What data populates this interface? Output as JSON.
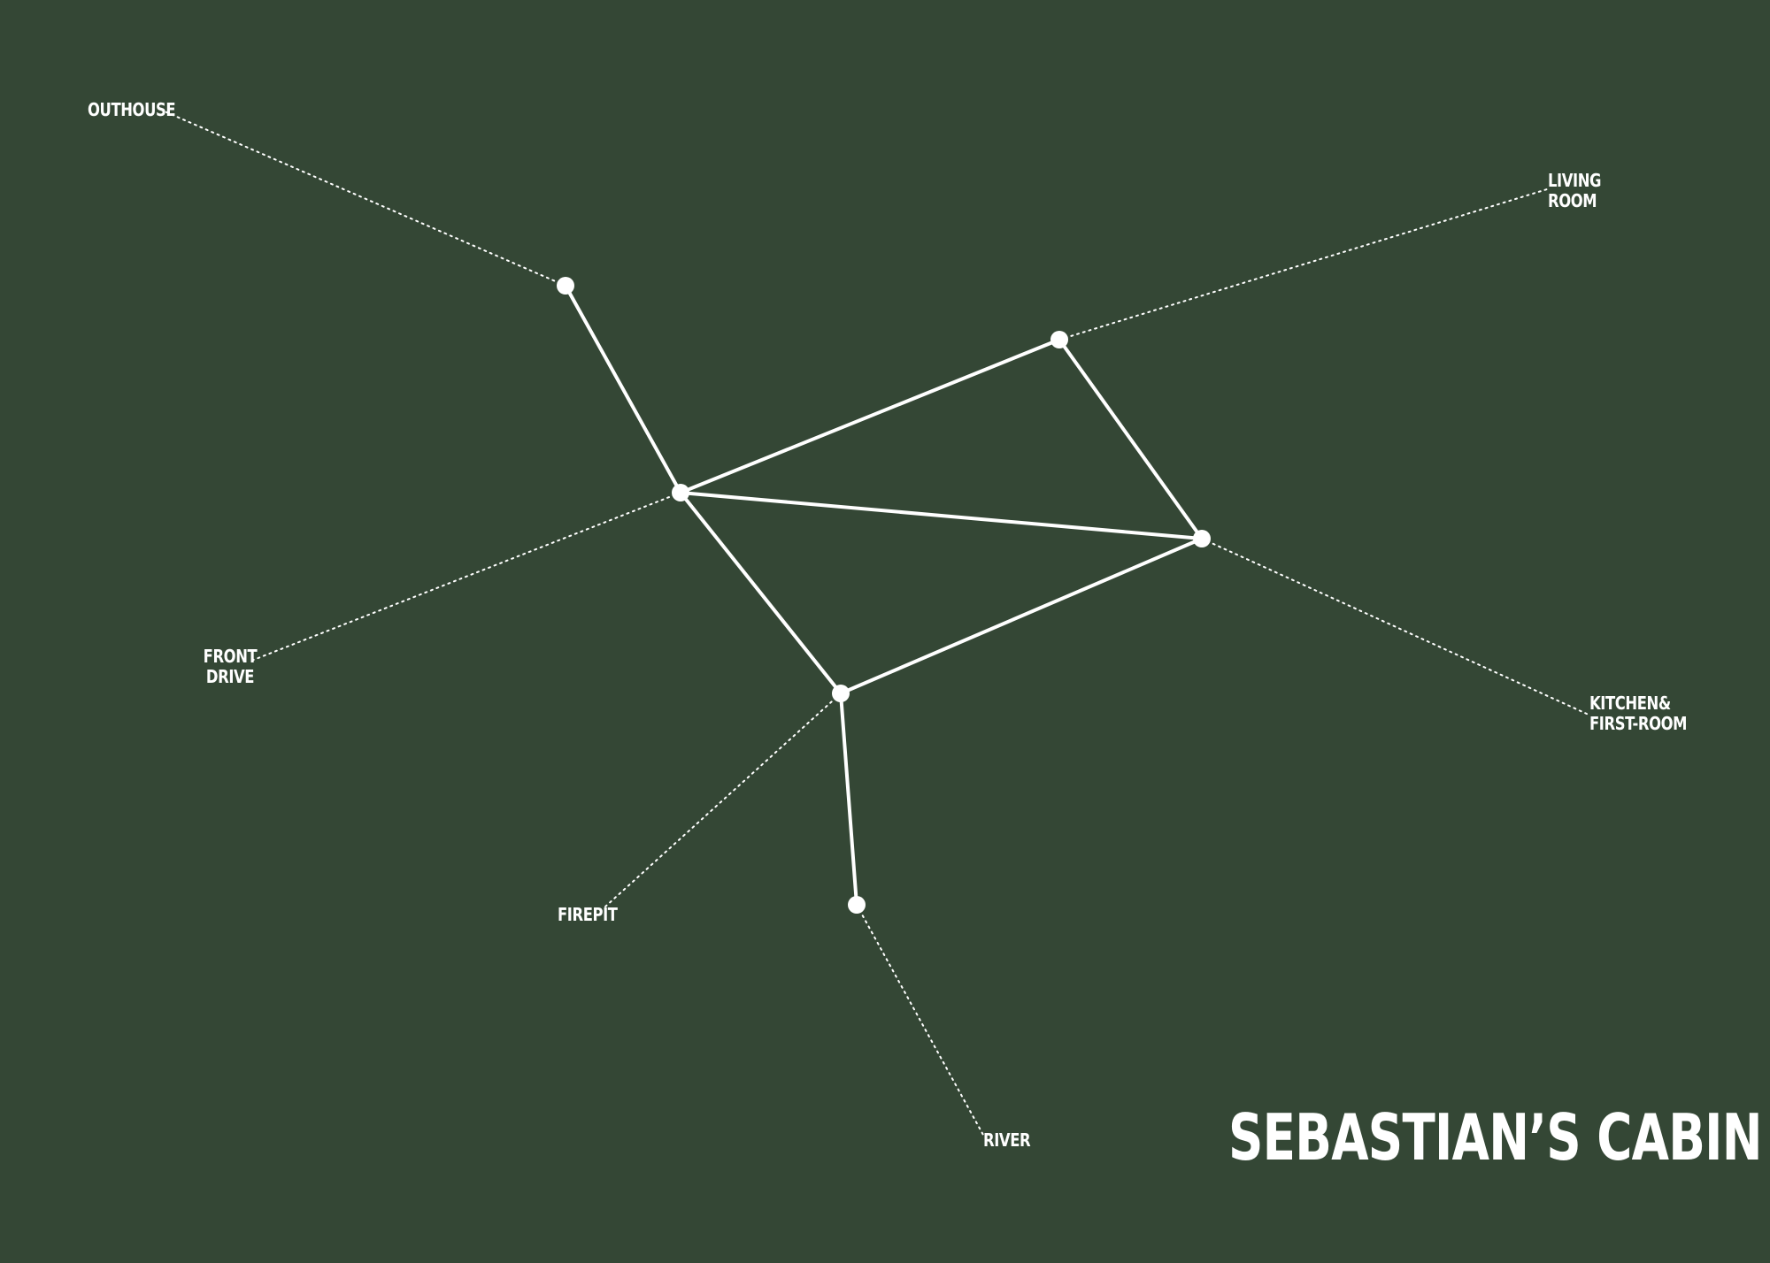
{
  "title": "SEBASTIAN’S CABIN",
  "colors": {
    "background": "#344735",
    "foreground": "#ffffff"
  },
  "labels": {
    "outhouse": [
      "OUTHOUSE"
    ],
    "living_room": [
      "LIVING",
      "ROOM"
    ],
    "front_drive": [
      "FRONT",
      "DRIVE"
    ],
    "kitchen": [
      "KITCHEN&",
      "FIRST-ROOM"
    ],
    "firepit": [
      "FIREPIT"
    ],
    "river": [
      "RIVER"
    ]
  }
}
